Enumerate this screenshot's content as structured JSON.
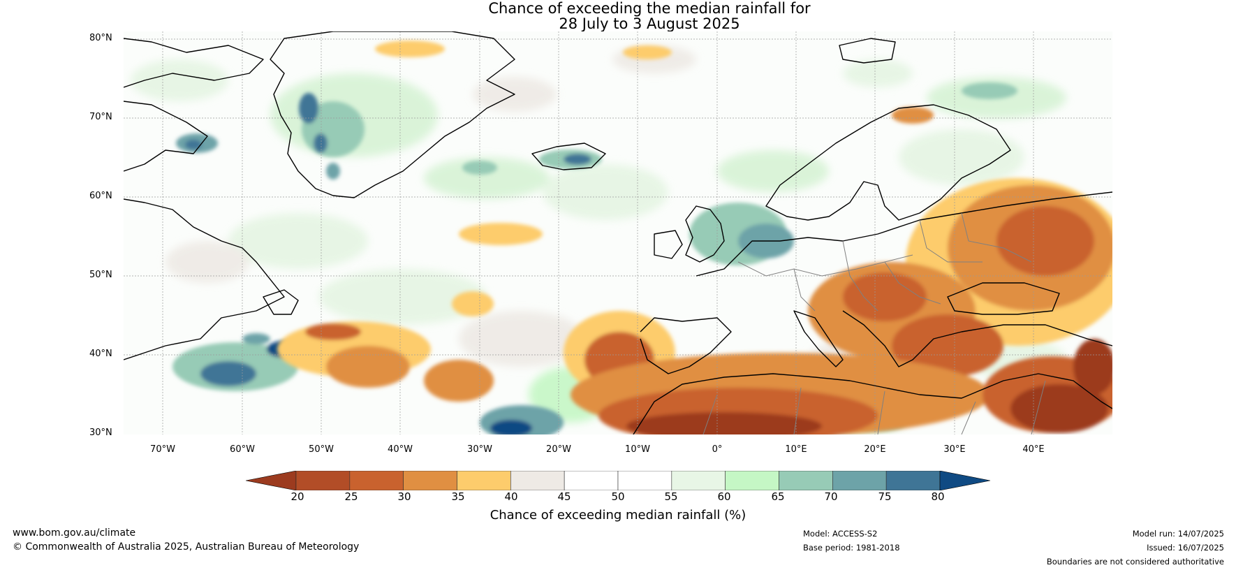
{
  "title": {
    "line1": "Chance of exceeding the median rainfall for",
    "line2": "28 July to 3 August 2025"
  },
  "map": {
    "region": "North Atlantic, Europe and North Africa",
    "lat_labels": [
      "80°N",
      "70°N",
      "60°N",
      "50°N",
      "40°N",
      "30°N"
    ],
    "lon_labels": [
      "70°W",
      "60°W",
      "50°W",
      "40°W",
      "30°W",
      "20°W",
      "10°W",
      "0°",
      "10°E",
      "20°E",
      "30°E",
      "40°E"
    ],
    "extent": {
      "lon": [
        -75,
        50
      ],
      "lat": [
        30,
        81
      ]
    }
  },
  "colorbar": {
    "ticks": [
      "20",
      "25",
      "30",
      "35",
      "40",
      "45",
      "50",
      "55",
      "60",
      "65",
      "70",
      "75",
      "80"
    ],
    "colors": [
      "#9c3b1f",
      "#b24d27",
      "#c9622e",
      "#e08f42",
      "#fdcc6c",
      "#eeeae5",
      "#ffffff",
      "#ffffff",
      "#e8f6e6",
      "#c5f7c5",
      "#97cbb6",
      "#6da3a8",
      "#3f7596",
      "#0f4a83"
    ],
    "label": "Chance of exceeding median rainfall (%)"
  },
  "footer": {
    "url": "www.bom.gov.au/climate",
    "copyright": "© Commonwealth of Australia 2025, Australian Bureau of Meteorology",
    "model": "Model: ACCESS-S2",
    "base_period": "Base period: 1981-2018",
    "model_run": "Model run: 14/07/2025",
    "issued": "Issued: 16/07/2025",
    "disclaimer": "Boundaries are not considered authoritative"
  }
}
